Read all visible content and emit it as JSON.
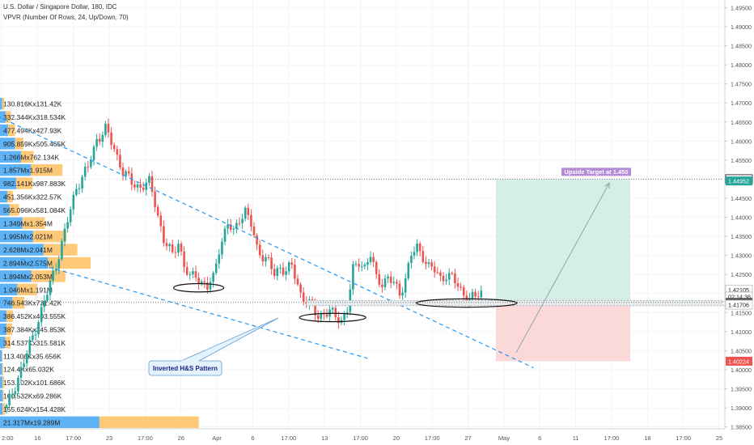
{
  "header": {
    "title": "U.S. Dollar / Singapore Dollar, 180, IDC",
    "indicator": "VPVR (Number Of Rows, 24, Up/Down, 70)"
  },
  "colors": {
    "up": "#26a69a",
    "down": "#ef5350",
    "vp_up": "#42a5f5",
    "vp_down": "#ffb74d",
    "trend": "#2196f3",
    "target_fill": "#d5efe7",
    "stop_fill": "#fbd9d9",
    "target_label_bg": "#b58ad6",
    "last_price": "#555555",
    "stop_level": "#ef5350"
  },
  "chart_data": {
    "type": "candlestick",
    "y_axis": {
      "range": [
        1.3845,
        1.497
      ],
      "ticks": [
        "1.49500",
        "1.49000",
        "1.48500",
        "1.48000",
        "1.47500",
        "1.47000",
        "1.46500",
        "1.46000",
        "1.45500",
        "1.45000",
        "1.44500",
        "1.44000",
        "1.43500",
        "1.43000",
        "1.42500",
        "1.42000",
        "1.41500",
        "1.41000",
        "1.40500",
        "1.40000",
        "1.39500",
        "1.39000",
        "1.38500"
      ]
    },
    "x_axis": {
      "ticks": [
        "2:00",
        "16",
        "17:00",
        "23",
        "17:00",
        "26",
        "Apr",
        "6",
        "17:00",
        "13",
        "17:00",
        "20",
        "17:00",
        "27",
        "May",
        "6",
        "11",
        "17:00",
        "18",
        "17:00",
        "25"
      ]
    },
    "price_labels": [
      {
        "text": "1.45000",
        "value": 1.45,
        "style": "level"
      },
      {
        "text": "1.44952",
        "value": 1.44952,
        "style": "target"
      },
      {
        "text": "1.42105",
        "value": 1.42105,
        "style": "plain"
      },
      {
        "text": "02:14:36",
        "value": 1.4192,
        "style": "plain"
      },
      {
        "text": "1.41767",
        "value": 1.41767,
        "style": "last"
      },
      {
        "text": "1.41706",
        "value": 1.41706,
        "style": "plain"
      },
      {
        "text": "1.40224",
        "value": 1.40224,
        "style": "stop"
      }
    ],
    "volume_profile": [
      {
        "label": "130.816Kx131.42K",
        "up": 130.816,
        "down": 131.42
      },
      {
        "label": "332.344Kx318.534K",
        "up": 332.344,
        "down": 318.534
      },
      {
        "label": "477.494Kx427.93K",
        "up": 477.494,
        "down": 427.93
      },
      {
        "label": "905.859Kx505.465K",
        "up": 905.859,
        "down": 505.465
      },
      {
        "label": "1.266Mx762.134K",
        "up": 1266,
        "down": 762.134
      },
      {
        "label": "1.857Mx1.915M",
        "up": 1857,
        "down": 1915
      },
      {
        "label": "982.141Kx987.883K",
        "up": 982.141,
        "down": 987.883
      },
      {
        "label": "451.356Kx322.57K",
        "up": 451.356,
        "down": 322.57
      },
      {
        "label": "565.096Kx581.084K",
        "up": 565.096,
        "down": 581.084
      },
      {
        "label": "1.349Mx1.354M",
        "up": 1349,
        "down": 1354
      },
      {
        "label": "1.995Mx2.021M",
        "up": 1995,
        "down": 2021
      },
      {
        "label": "2.628Mx2.041M",
        "up": 2628,
        "down": 2041
      },
      {
        "label": "2.894Mx2.575M",
        "up": 2894,
        "down": 2575
      },
      {
        "label": "1.894Mx2.053M",
        "up": 1894,
        "down": 2053
      },
      {
        "label": "1.046Mx1.191M",
        "up": 1046,
        "down": 1191
      },
      {
        "label": "746.543Kx731.42K",
        "up": 746.543,
        "down": 731.42
      },
      {
        "label": "386.452Kx403.555K",
        "up": 386.452,
        "down": 403.555
      },
      {
        "label": "387.384Kx345.853K",
        "up": 387.384,
        "down": 345.853
      },
      {
        "label": "314.537Kx315.581K",
        "up": 314.537,
        "down": 315.581
      },
      {
        "label": "113.406Kx35.656K",
        "up": 113.406,
        "down": 35.656
      },
      {
        "label": "124.4Kx65.032K",
        "up": 124.4,
        "down": 65.032
      },
      {
        "label": "153.102Kx101.686K",
        "up": 153.102,
        "down": 101.686
      },
      {
        "label": "160.532Kx69.286K",
        "up": 160.532,
        "down": 69.286
      },
      {
        "label": "155.624Kx154.428K",
        "up": 155.624,
        "down": 154.428
      },
      {
        "label": "21.317Mx19.289M",
        "up": 21317,
        "down": 19289
      }
    ],
    "price_path": [
      {
        "t": 0,
        "p": 1.39
      },
      {
        "t": 6,
        "p": 1.402
      },
      {
        "t": 10,
        "p": 1.411
      },
      {
        "t": 14,
        "p": 1.42
      },
      {
        "t": 19,
        "p": 1.433
      },
      {
        "t": 24,
        "p": 1.448
      },
      {
        "t": 28,
        "p": 1.453
      },
      {
        "t": 31,
        "p": 1.4605
      },
      {
        "t": 34,
        "p": 1.463
      },
      {
        "t": 37,
        "p": 1.458
      },
      {
        "t": 40,
        "p": 1.452
      },
      {
        "t": 43,
        "p": 1.449
      },
      {
        "t": 46,
        "p": 1.448
      },
      {
        "t": 49,
        "p": 1.449
      },
      {
        "t": 51,
        "p": 1.444
      },
      {
        "t": 54,
        "p": 1.434
      },
      {
        "t": 57,
        "p": 1.43
      },
      {
        "t": 59,
        "p": 1.434
      },
      {
        "t": 61,
        "p": 1.427
      },
      {
        "t": 63,
        "p": 1.424
      },
      {
        "t": 65,
        "p": 1.425
      },
      {
        "t": 67,
        "p": 1.423
      },
      {
        "t": 69,
        "p": 1.4215
      },
      {
        "t": 71,
        "p": 1.424
      },
      {
        "t": 73,
        "p": 1.432
      },
      {
        "t": 76,
        "p": 1.438
      },
      {
        "t": 78,
        "p": 1.436
      },
      {
        "t": 80,
        "p": 1.44
      },
      {
        "t": 82,
        "p": 1.4415
      },
      {
        "t": 84,
        "p": 1.438
      },
      {
        "t": 86,
        "p": 1.432
      },
      {
        "t": 88,
        "p": 1.43
      },
      {
        "t": 90,
        "p": 1.428
      },
      {
        "t": 92,
        "p": 1.425
      },
      {
        "t": 94,
        "p": 1.427
      },
      {
        "t": 96,
        "p": 1.426
      },
      {
        "t": 98,
        "p": 1.427
      },
      {
        "t": 101,
        "p": 1.42
      },
      {
        "t": 103,
        "p": 1.418
      },
      {
        "t": 105,
        "p": 1.416
      },
      {
        "t": 107,
        "p": 1.414
      },
      {
        "t": 109,
        "p": 1.415
      },
      {
        "t": 111,
        "p": 1.415
      },
      {
        "t": 113,
        "p": 1.414
      },
      {
        "t": 115,
        "p": 1.413
      },
      {
        "t": 117,
        "p": 1.416
      },
      {
        "t": 119,
        "p": 1.426
      },
      {
        "t": 121,
        "p": 1.4285
      },
      {
        "t": 123,
        "p": 1.427
      },
      {
        "t": 125,
        "p": 1.43
      },
      {
        "t": 127,
        "p": 1.424
      },
      {
        "t": 129,
        "p": 1.423
      },
      {
        "t": 131,
        "p": 1.424
      },
      {
        "t": 133,
        "p": 1.4225
      },
      {
        "t": 135,
        "p": 1.42
      },
      {
        "t": 137,
        "p": 1.424
      },
      {
        "t": 139,
        "p": 1.43
      },
      {
        "t": 141,
        "p": 1.432
      },
      {
        "t": 143,
        "p": 1.43
      },
      {
        "t": 145,
        "p": 1.427
      },
      {
        "t": 147,
        "p": 1.426
      },
      {
        "t": 149,
        "p": 1.424
      },
      {
        "t": 151,
        "p": 1.425
      },
      {
        "t": 153,
        "p": 1.424
      },
      {
        "t": 155,
        "p": 1.422
      },
      {
        "t": 157,
        "p": 1.42
      },
      {
        "t": 159,
        "p": 1.4185
      },
      {
        "t": 161,
        "p": 1.419
      },
      {
        "t": 163,
        "p": 1.4205
      }
    ],
    "annotations": {
      "callout": "Inverted H&S Pattern",
      "target_label": "Upside Target at 1.450",
      "target_level": 1.45,
      "entry_level": 1.41767,
      "stop_level": 1.40224,
      "zone_top": 1.4182,
      "zone_bottom": 1.4168,
      "res_line": [
        [
          -3,
          1.4665
        ],
        [
          181,
          1.4005
        ]
      ],
      "sup_line": [
        [
          5,
          1.429
        ],
        [
          124,
          1.403
        ]
      ],
      "arrow": [
        [
          175,
          1.4045
        ],
        [
          207,
          1.449
        ]
      ],
      "ellipses": [
        {
          "t": 66,
          "p": 1.4215,
          "rt": 8.6,
          "rp": 0.0011
        },
        {
          "t": 112,
          "p": 1.4137,
          "rt": 11.4,
          "rp": 0.0011
        },
        {
          "t": 158,
          "p": 1.4175,
          "rt": 17.3,
          "rp": 0.0011
        }
      ]
    }
  }
}
